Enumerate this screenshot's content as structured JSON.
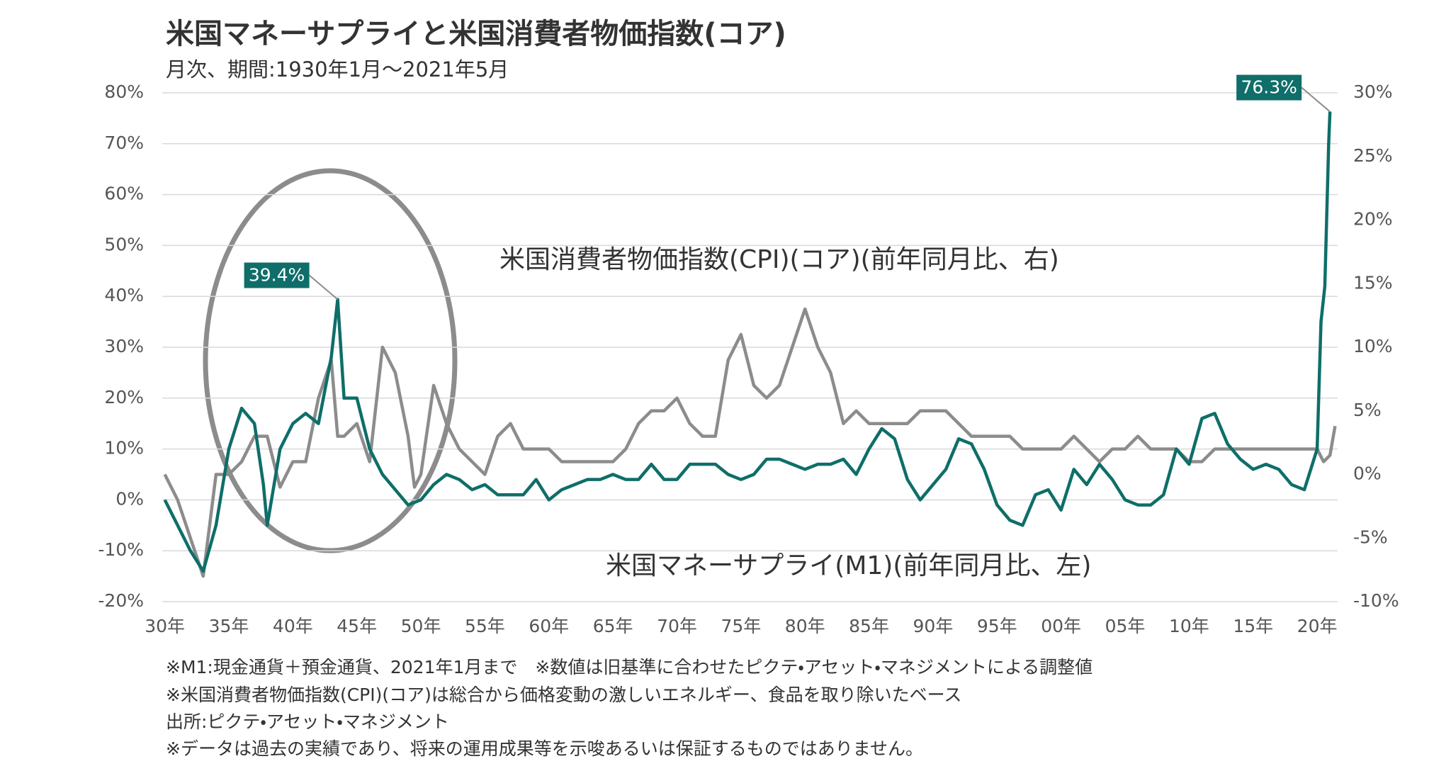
{
  "chart_data": {
    "type": "line",
    "title": "米国マネーサプライと米国消費者物価指数(コア)",
    "subtitle": "月次、期間:1930年1月～2021年5月",
    "xlim": [
      1929.8,
      2021.6
    ],
    "xticks": [
      {
        "value": 1930,
        "label": "30年"
      },
      {
        "value": 1935,
        "label": "35年"
      },
      {
        "value": 1940,
        "label": "40年"
      },
      {
        "value": 1945,
        "label": "45年"
      },
      {
        "value": 1950,
        "label": "50年"
      },
      {
        "value": 1955,
        "label": "55年"
      },
      {
        "value": 1960,
        "label": "60年"
      },
      {
        "value": 1965,
        "label": "65年"
      },
      {
        "value": 1970,
        "label": "70年"
      },
      {
        "value": 1975,
        "label": "75年"
      },
      {
        "value": 1980,
        "label": "80年"
      },
      {
        "value": 1985,
        "label": "85年"
      },
      {
        "value": 1990,
        "label": "90年"
      },
      {
        "value": 1995,
        "label": "95年"
      },
      {
        "value": 2000,
        "label": "00年"
      },
      {
        "value": 2005,
        "label": "05年"
      },
      {
        "value": 2010,
        "label": "10年"
      },
      {
        "value": 2015,
        "label": "15年"
      },
      {
        "value": 2020,
        "label": "20年"
      }
    ],
    "ylim": [
      -20,
      80
    ],
    "yticks": [
      {
        "value": -20,
        "label": "-20%"
      },
      {
        "value": -10,
        "label": "-10%"
      },
      {
        "value": 0,
        "label": "0%"
      },
      {
        "value": 10,
        "label": "10%"
      },
      {
        "value": 20,
        "label": "20%"
      },
      {
        "value": 30,
        "label": "30%"
      },
      {
        "value": 40,
        "label": "40%"
      },
      {
        "value": 50,
        "label": "50%"
      },
      {
        "value": 60,
        "label": "60%"
      },
      {
        "value": 70,
        "label": "70%"
      },
      {
        "value": 80,
        "label": "80%"
      }
    ],
    "y2lim": [
      -10,
      30
    ],
    "y2ticks": [
      {
        "value": -10,
        "label": "-10%"
      },
      {
        "value": -5,
        "label": "-5%"
      },
      {
        "value": 0,
        "label": "0%"
      },
      {
        "value": 5,
        "label": "5%"
      },
      {
        "value": 10,
        "label": "10%"
      },
      {
        "value": 15,
        "label": "15%"
      },
      {
        "value": 20,
        "label": "20%"
      },
      {
        "value": 25,
        "label": "25%"
      },
      {
        "value": 30,
        "label": "30%"
      }
    ],
    "grid": true,
    "series": [
      {
        "name": "米国消費者物価指数(CPI)(コア)(前年同月比、右)",
        "color": "#8c8c8c",
        "axis": "y2",
        "x": [
          1930,
          1931,
          1932,
          1933,
          1934,
          1935,
          1936,
          1937,
          1938,
          1939,
          1940,
          1941,
          1942,
          1943,
          1943.5,
          1944,
          1945,
          1946,
          1947,
          1948,
          1949,
          1949.5,
          1950,
          1951,
          1952,
          1953,
          1954,
          1955,
          1956,
          1957,
          1958,
          1959,
          1960,
          1961,
          1962,
          1963,
          1964,
          1965,
          1966,
          1967,
          1968,
          1969,
          1970,
          1971,
          1972,
          1973,
          1974,
          1975,
          1976,
          1977,
          1978,
          1979,
          1980,
          1981,
          1982,
          1983,
          1984,
          1985,
          1986,
          1987,
          1988,
          1989,
          1990,
          1991,
          1992,
          1993,
          1994,
          1995,
          1996,
          1997,
          1998,
          1999,
          2000,
          2001,
          2002,
          2003,
          2004,
          2005,
          2006,
          2007,
          2008,
          2009,
          2010,
          2011,
          2012,
          2013,
          2014,
          2015,
          2016,
          2017,
          2018,
          2019,
          2020,
          2020.5,
          2021,
          2021.4
        ],
        "values": [
          0,
          -2,
          -5,
          -8,
          0,
          0,
          1,
          3,
          3,
          -1,
          1,
          1,
          6,
          9,
          3,
          3,
          4,
          1,
          10,
          8,
          3,
          -1,
          0,
          7,
          4,
          2,
          1,
          0,
          3,
          4,
          2,
          2,
          2,
          1,
          1,
          1,
          1,
          1,
          2,
          4,
          5,
          5,
          6,
          4,
          3,
          3,
          9,
          11,
          7,
          6,
          7,
          10,
          13,
          10,
          8,
          4,
          5,
          4,
          4,
          4,
          4,
          5,
          5,
          5,
          4,
          3,
          3,
          3,
          3,
          2,
          2,
          2,
          2,
          3,
          2,
          1,
          2,
          2,
          3,
          2,
          2,
          2,
          1,
          1,
          2,
          2,
          2,
          2,
          2,
          2,
          2,
          2,
          2,
          1,
          1.5,
          3.8
        ]
      },
      {
        "name": "米国マネーサプライ(M1)(前年同月比、左)",
        "color": "#0f6e69",
        "x": [
          1930,
          1931,
          1932,
          1933,
          1934,
          1935,
          1936,
          1937,
          1937.7,
          1938,
          1939,
          1940,
          1941,
          1942,
          1943,
          1943.5,
          1944,
          1945,
          1946,
          1947,
          1948,
          1949,
          1950,
          1951,
          1952,
          1953,
          1954,
          1955,
          1956,
          1957,
          1958,
          1959,
          1960,
          1961,
          1962,
          1963,
          1964,
          1965,
          1966,
          1967,
          1968,
          1969,
          1970,
          1971,
          1972,
          1973,
          1974,
          1975,
          1976,
          1977,
          1978,
          1979,
          1980,
          1981,
          1982,
          1983,
          1984,
          1985,
          1986,
          1987,
          1988,
          1989,
          1990,
          1991,
          1992,
          1993,
          1994,
          1995,
          1996,
          1997,
          1998,
          1999,
          2000,
          2001,
          2002,
          2003,
          2004,
          2005,
          2006,
          2007,
          2008,
          2009,
          2010,
          2011,
          2012,
          2013,
          2014,
          2015,
          2016,
          2017,
          2018,
          2019,
          2020,
          2020.3,
          2020.6,
          2020.9,
          2021
        ],
        "values": [
          0,
          -5,
          -10,
          -14,
          -5,
          10,
          18,
          15,
          3,
          -5,
          10,
          15,
          17,
          15,
          28,
          39.4,
          20,
          20,
          10,
          5,
          2,
          -1,
          0,
          3,
          5,
          4,
          2,
          3,
          1,
          1,
          1,
          4,
          0,
          2,
          3,
          4,
          4,
          5,
          4,
          4,
          7,
          4,
          4,
          7,
          7,
          7,
          5,
          4,
          5,
          8,
          8,
          7,
          6,
          7,
          7,
          8,
          5,
          10,
          14,
          12,
          4,
          0,
          3,
          6,
          12,
          11,
          6,
          -1,
          -4,
          -5,
          1,
          2,
          -2,
          6,
          3,
          7,
          4,
          0,
          -1,
          -1,
          1,
          10,
          7,
          16,
          17,
          11,
          8,
          6,
          7,
          6,
          3,
          2,
          10,
          35,
          42,
          70,
          76.3
        ],
        "value_labels": [
          null,
          null,
          null,
          null,
          null,
          null,
          null,
          null,
          null,
          null,
          null,
          null,
          null,
          null,
          null,
          "39.4%",
          null,
          null,
          null,
          null,
          null,
          null,
          null,
          null,
          null,
          null,
          null,
          null,
          null,
          null,
          null,
          null,
          null,
          null,
          null,
          null,
          null,
          null,
          null,
          null,
          null,
          null,
          null,
          null,
          null,
          null,
          null,
          null,
          null,
          null,
          null,
          null,
          null,
          null,
          null,
          null,
          null,
          null,
          null,
          null,
          null,
          null,
          null,
          null,
          null,
          null,
          null,
          null,
          null,
          null,
          null,
          null,
          null,
          null,
          null,
          null,
          null,
          null,
          null,
          null,
          null,
          null,
          null,
          null,
          null,
          null,
          null,
          null,
          null,
          null,
          null,
          null,
          null,
          null,
          null,
          null,
          "76.3%"
        ]
      }
    ],
    "notes": [
      "※M1:現金通貨＋預金通貨、2021年1月まで　※数値は旧基準に合わせたピクテ・アセット・マネジメントによる調整値",
      "※米国消費者物価指数(CPI)(コア)は総合から価格変動の激しいエネルギー、食品を取り除いたベース",
      "出所:ピクテ・アセット・マネジメント",
      "※データは過去の実績であり、将来の運用成果等を示唆あるいは保証するものではありません。"
    ]
  }
}
